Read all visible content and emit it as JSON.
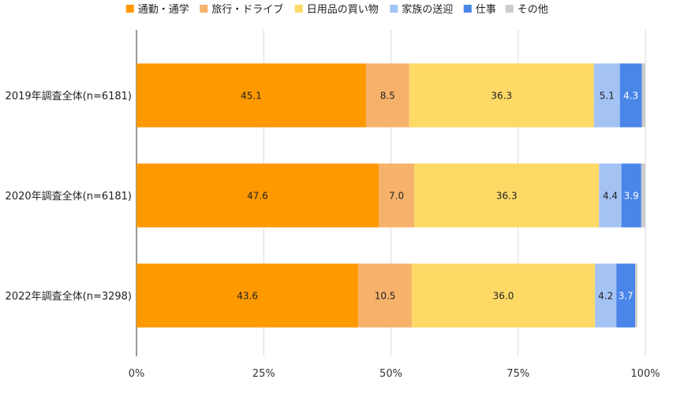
{
  "chart_data": {
    "type": "bar",
    "orientation": "horizontal",
    "stacked": true,
    "percent_stacked": true,
    "categories": [
      "2019年調査全体(n=6181)",
      "2020年調査全体(n=6181)",
      "2022年調査全体(n=3298)"
    ],
    "series": [
      {
        "name": "通勤・通学",
        "values": [
          45.1,
          47.6,
          43.6
        ],
        "labels": [
          "45.1",
          "47.6",
          "43.6"
        ],
        "color": "#ff9900"
      },
      {
        "name": "旅行・ドライブ",
        "values": [
          8.5,
          7.0,
          10.5
        ],
        "labels": [
          "8.5",
          "7.0",
          "10.5"
        ],
        "color": "#f6b26b"
      },
      {
        "name": "日用品の買い物",
        "values": [
          36.3,
          36.3,
          36.0
        ],
        "labels": [
          "36.3",
          "36.3",
          "36.0"
        ],
        "color": "#ffd966"
      },
      {
        "name": "家族の送迎",
        "values": [
          5.1,
          4.4,
          4.2
        ],
        "labels": [
          "5.1",
          "4.4",
          "4.2"
        ],
        "color": "#a4c2f4"
      },
      {
        "name": "仕事",
        "values": [
          4.3,
          3.9,
          3.7
        ],
        "labels": [
          "4.3",
          "3.9",
          "3.7"
        ],
        "color": "#4a86e8"
      },
      {
        "name": "その他",
        "values": [
          0.7,
          0.8,
          0.4
        ],
        "labels": [
          "",
          "",
          ""
        ],
        "color": "#cccccc"
      }
    ],
    "xlim": [
      0,
      100
    ],
    "xticks": [
      0,
      25,
      50,
      75,
      100
    ],
    "xtick_labels": [
      "0%",
      "25%",
      "50%",
      "75%",
      "100%"
    ],
    "legend_position": "top",
    "grid": true
  }
}
